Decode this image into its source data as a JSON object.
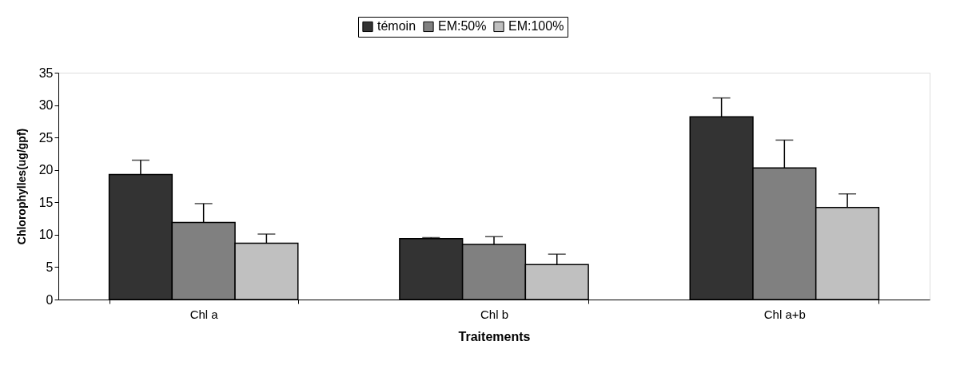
{
  "chart_data": {
    "type": "bar",
    "xlabel": "Traitements",
    "ylabel": "Chlorophylles(ug/gpf)",
    "categories": [
      "Chl a",
      "Chl b",
      "Chl a+b"
    ],
    "series": [
      {
        "name": "témoin",
        "color": "#333333",
        "values": [
          19.3,
          9.4,
          28.2
        ],
        "errors": [
          [
            19.3,
            21.5
          ],
          [
            9.4,
            9.55
          ],
          [
            28.2,
            31.1
          ]
        ]
      },
      {
        "name": "EM:50%",
        "color": "#808080",
        "values": [
          11.9,
          8.5,
          20.3
        ],
        "errors": [
          [
            11.9,
            14.8
          ],
          [
            8.5,
            9.7
          ],
          [
            20.3,
            24.6
          ]
        ]
      },
      {
        "name": "EM:100%",
        "color": "#c0c0c0",
        "values": [
          8.7,
          5.4,
          14.2
        ],
        "errors": [
          [
            8.7,
            10.1
          ],
          [
            5.4,
            7.0
          ],
          [
            14.2,
            16.3
          ]
        ]
      }
    ],
    "ylim": [
      0,
      35
    ],
    "yticks": [
      0,
      5,
      10,
      15,
      20,
      25,
      30,
      35
    ],
    "grid": false,
    "legend": "top"
  }
}
